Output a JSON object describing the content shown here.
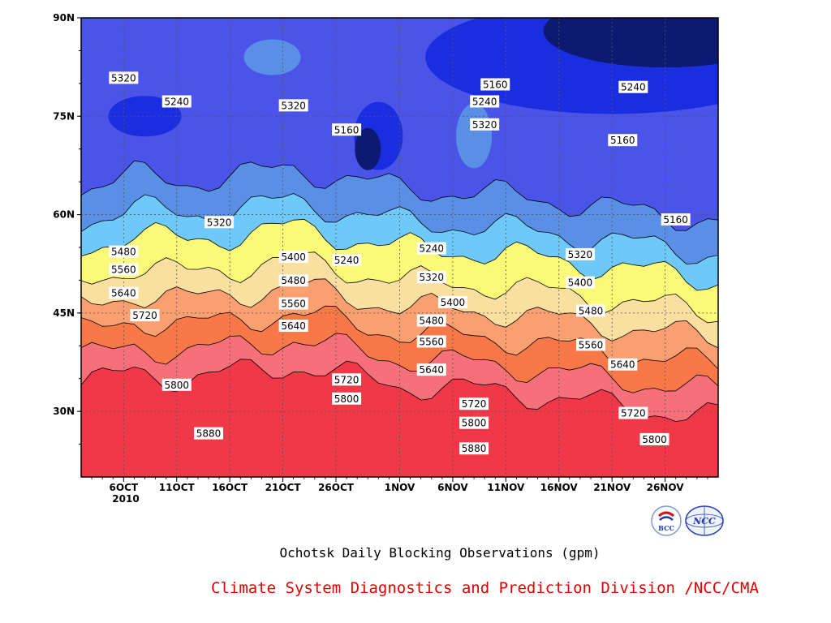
{
  "chart_data": {
    "type": "heatmap",
    "subtype": "filled-contour (time-latitude)",
    "title": "Ochotsk Daily Blocking Observations (gpm)",
    "credit": "Climate System Diagnostics and Prediction Division /NCC/CMA",
    "xlabel": "",
    "ylabel": "",
    "x_ticks": [
      "6OCT",
      "11OCT",
      "16OCT",
      "21OCT",
      "26OCT",
      "1NOV",
      "6NOV",
      "11NOV",
      "16NOV",
      "21NOV",
      "26NOV"
    ],
    "x_tick_year": "2010",
    "x_range": [
      "2010-10-02",
      "2010-12-01"
    ],
    "y_ticks": [
      "30N",
      "45N",
      "60N",
      "75N",
      "90N"
    ],
    "y_range": [
      20,
      90
    ],
    "grid": "dotted",
    "contour_levels": [
      5160,
      5240,
      5320,
      5400,
      5480,
      5560,
      5640,
      5720,
      5800,
      5880
    ],
    "fill_colors": [
      "#0c1a72",
      "#1a2ee0",
      "#4a54e8",
      "#5a8fe6",
      "#6ec8fa",
      "#fafa78",
      "#fae0a0",
      "#faa070",
      "#f87848",
      "#f57078",
      "#f03848"
    ],
    "contour_labels": [
      {
        "date": "2010-10-06",
        "lat": 80.8,
        "text": "5320"
      },
      {
        "date": "2010-10-11",
        "lat": 77.2,
        "text": "5240"
      },
      {
        "date": "2010-10-22",
        "lat": 76.6,
        "text": "5320"
      },
      {
        "date": "2010-10-27",
        "lat": 72.9,
        "text": "5160"
      },
      {
        "date": "2010-11-10",
        "lat": 79.8,
        "text": "5160"
      },
      {
        "date": "2010-11-09",
        "lat": 77.2,
        "text": "5240"
      },
      {
        "date": "2010-11-09",
        "lat": 73.7,
        "text": "5320"
      },
      {
        "date": "2010-11-23",
        "lat": 79.4,
        "text": "5240"
      },
      {
        "date": "2010-11-22",
        "lat": 71.3,
        "text": "5160"
      },
      {
        "date": "2010-11-27",
        "lat": 59.2,
        "text": "5160"
      },
      {
        "date": "2010-10-15",
        "lat": 58.8,
        "text": "5320"
      },
      {
        "date": "2010-10-06",
        "lat": 54.3,
        "text": "5480"
      },
      {
        "date": "2010-10-06",
        "lat": 51.6,
        "text": "5560"
      },
      {
        "date": "2010-10-06",
        "lat": 48.0,
        "text": "5640"
      },
      {
        "date": "2010-10-08",
        "lat": 44.6,
        "text": "5720"
      },
      {
        "date": "2010-10-11",
        "lat": 34.0,
        "text": "5800"
      },
      {
        "date": "2010-10-14",
        "lat": 26.6,
        "text": "5880"
      },
      {
        "date": "2010-10-22",
        "lat": 53.5,
        "text": "5400"
      },
      {
        "date": "2010-10-22",
        "lat": 49.9,
        "text": "5480"
      },
      {
        "date": "2010-10-22",
        "lat": 46.4,
        "text": "5560"
      },
      {
        "date": "2010-10-22",
        "lat": 43.0,
        "text": "5640"
      },
      {
        "date": "2010-10-27",
        "lat": 53.0,
        "text": "5240"
      },
      {
        "date": "2010-10-27",
        "lat": 34.8,
        "text": "5720"
      },
      {
        "date": "2010-10-27",
        "lat": 31.9,
        "text": "5800"
      },
      {
        "date": "2010-11-04",
        "lat": 54.8,
        "text": "5240"
      },
      {
        "date": "2010-11-04",
        "lat": 50.4,
        "text": "5320"
      },
      {
        "date": "2010-11-06",
        "lat": 46.6,
        "text": "5400"
      },
      {
        "date": "2010-11-04",
        "lat": 43.8,
        "text": "5480"
      },
      {
        "date": "2010-11-04",
        "lat": 40.6,
        "text": "5560"
      },
      {
        "date": "2010-11-04",
        "lat": 36.3,
        "text": "5640"
      },
      {
        "date": "2010-11-08",
        "lat": 31.1,
        "text": "5720"
      },
      {
        "date": "2010-11-08",
        "lat": 28.2,
        "text": "5800"
      },
      {
        "date": "2010-11-08",
        "lat": 24.3,
        "text": "5880"
      },
      {
        "date": "2010-11-18",
        "lat": 53.9,
        "text": "5320"
      },
      {
        "date": "2010-11-18",
        "lat": 49.6,
        "text": "5400"
      },
      {
        "date": "2010-11-19",
        "lat": 45.3,
        "text": "5480"
      },
      {
        "date": "2010-11-19",
        "lat": 40.1,
        "text": "5560"
      },
      {
        "date": "2010-11-22",
        "lat": 37.1,
        "text": "5640"
      },
      {
        "date": "2010-11-23",
        "lat": 29.7,
        "text": "5720"
      },
      {
        "date": "2010-11-25",
        "lat": 25.7,
        "text": "5800"
      }
    ]
  },
  "logos": {
    "left": {
      "icon": "bcc-logo",
      "text": "BCC"
    },
    "right": {
      "icon": "ncc-logo",
      "text": "NCC"
    }
  }
}
